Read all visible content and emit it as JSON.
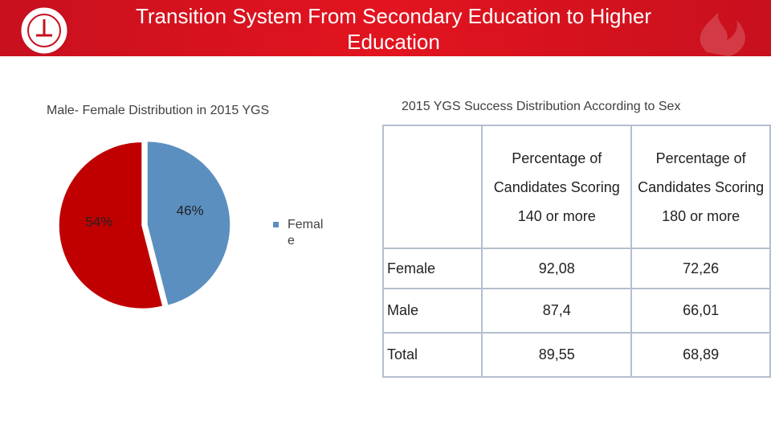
{
  "header": {
    "title": "Transition System From Secondary Education to Higher Education"
  },
  "chart_data": {
    "type": "pie",
    "title": "Male- Female Distribution in 2015 YGS",
    "categories": [
      "Female",
      null
    ],
    "values": [
      46,
      54
    ],
    "value_labels": [
      "46%",
      "54%"
    ],
    "colors": [
      "#5b8fc0",
      "#c00000"
    ]
  },
  "table": {
    "title": "2015 YGS Success Distribution According to Sex",
    "columns": [
      "Percentage of Candidates Scoring 140 or more",
      "Percentage of Candidates Scoring 180 or more"
    ],
    "rows": [
      [
        "Female",
        "92,08",
        "72,26"
      ],
      [
        "Male",
        "87,4",
        "66,01"
      ],
      [
        "Total",
        "89,55",
        "68,89"
      ]
    ]
  }
}
